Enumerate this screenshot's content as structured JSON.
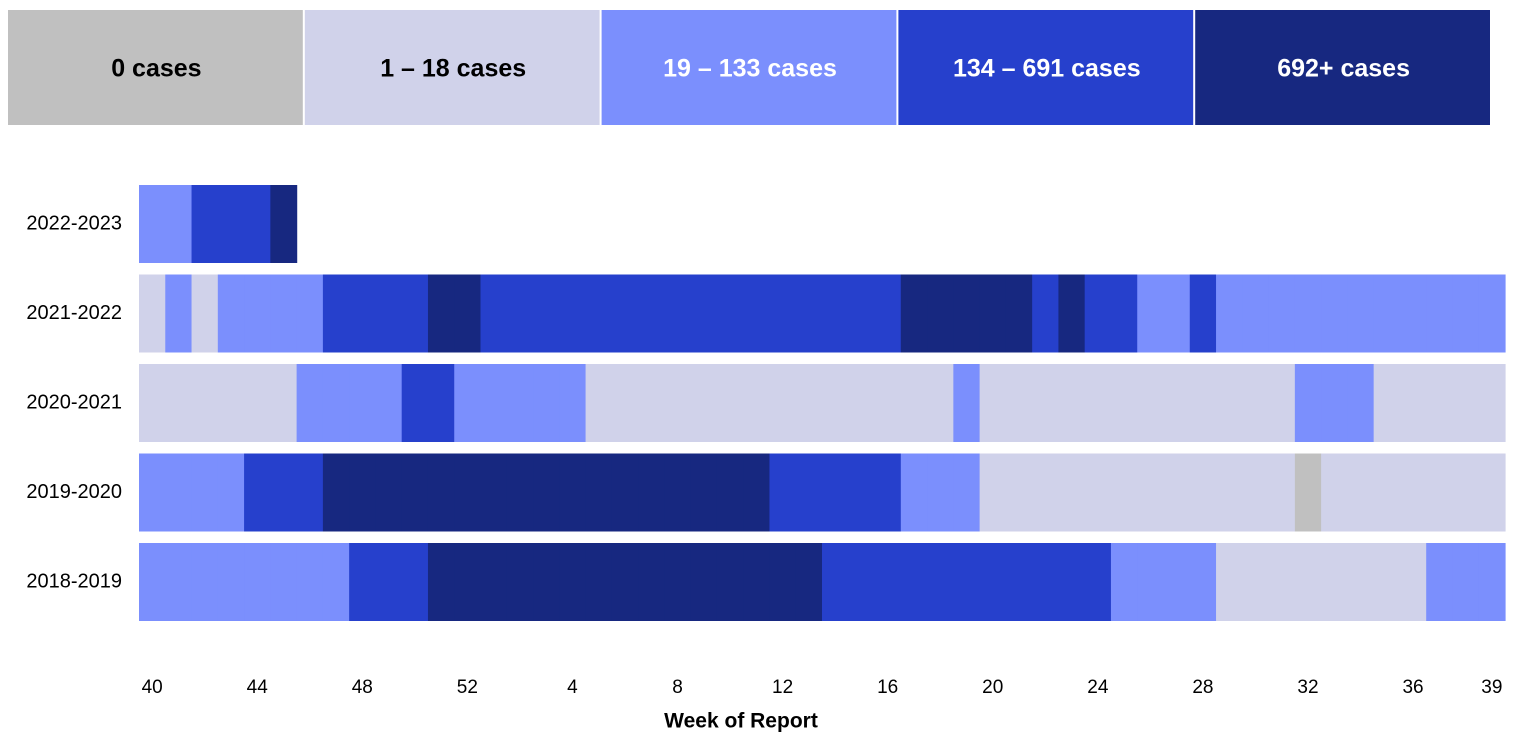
{
  "chart_data": {
    "type": "heatstrip",
    "x_label": "Week of Report",
    "legend": [
      {
        "label": "0 cases",
        "color": "#c0c0c0",
        "text_color": "#000000"
      },
      {
        "label": "1 – 18 cases",
        "color": "#d0d2ea",
        "text_color": "#000000"
      },
      {
        "label": "19 – 133 cases",
        "color": "#7b8ffd",
        "text_color": "#ffffff"
      },
      {
        "label": "134 – 691 cases",
        "color": "#2640cc",
        "text_color": "#ffffff"
      },
      {
        "label": "692+ cases",
        "color": "#172880",
        "text_color": "#ffffff"
      }
    ],
    "categories": [
      40,
      null,
      null,
      null,
      44,
      null,
      null,
      null,
      48,
      null,
      null,
      null,
      52,
      null,
      null,
      null,
      4,
      null,
      null,
      null,
      8,
      null,
      null,
      null,
      12,
      null,
      null,
      null,
      16,
      null,
      null,
      null,
      20,
      null,
      null,
      null,
      24,
      null,
      null,
      null,
      28,
      null,
      null,
      null,
      32,
      null,
      null,
      null,
      36,
      null,
      null,
      39
    ],
    "series": [
      {
        "name": "2022-2023",
        "values": [
          2,
          2,
          3,
          3,
          3,
          4,
          null,
          null,
          null,
          null,
          null,
          null,
          null,
          null,
          null,
          null,
          null,
          null,
          null,
          null,
          null,
          null,
          null,
          null,
          null,
          null,
          null,
          null,
          null,
          null,
          null,
          null,
          null,
          null,
          null,
          null,
          null,
          null,
          null,
          null,
          null,
          null,
          null,
          null,
          null,
          null,
          null,
          null,
          null,
          null,
          null,
          null
        ]
      },
      {
        "name": "2021-2022",
        "values": [
          1,
          2,
          1,
          2,
          2,
          2,
          2,
          3,
          3,
          3,
          3,
          4,
          4,
          3,
          3,
          3,
          3,
          3,
          3,
          3,
          3,
          3,
          3,
          3,
          3,
          3,
          3,
          3,
          3,
          4,
          4,
          4,
          4,
          4,
          3,
          4,
          3,
          3,
          2,
          2,
          3,
          2,
          2,
          2,
          2,
          2,
          2,
          2,
          2,
          2,
          2,
          2
        ]
      },
      {
        "name": "2020-2021",
        "values": [
          1,
          1,
          1,
          1,
          1,
          1,
          2,
          2,
          2,
          2,
          3,
          3,
          2,
          2,
          2,
          2,
          2,
          1,
          1,
          1,
          1,
          1,
          1,
          1,
          1,
          1,
          1,
          1,
          1,
          1,
          1,
          2,
          1,
          1,
          1,
          1,
          1,
          1,
          1,
          1,
          1,
          1,
          1,
          1,
          2,
          2,
          2,
          1,
          1,
          1,
          1,
          1
        ]
      },
      {
        "name": "2019-2020",
        "values": [
          2,
          2,
          2,
          2,
          3,
          3,
          3,
          4,
          4,
          4,
          4,
          4,
          4,
          4,
          4,
          4,
          4,
          4,
          4,
          4,
          4,
          4,
          4,
          4,
          3,
          3,
          3,
          3,
          3,
          2,
          2,
          2,
          1,
          1,
          1,
          1,
          1,
          1,
          1,
          1,
          1,
          1,
          1,
          1,
          0,
          1,
          1,
          1,
          1,
          1,
          1,
          1
        ]
      },
      {
        "name": "2018-2019",
        "values": [
          2,
          2,
          2,
          2,
          2,
          2,
          2,
          2,
          3,
          3,
          3,
          4,
          4,
          4,
          4,
          4,
          4,
          4,
          4,
          4,
          4,
          4,
          4,
          4,
          4,
          4,
          3,
          3,
          3,
          3,
          3,
          3,
          3,
          3,
          3,
          3,
          3,
          2,
          2,
          2,
          2,
          1,
          1,
          1,
          1,
          1,
          1,
          1,
          1,
          2,
          2,
          2
        ]
      }
    ]
  }
}
